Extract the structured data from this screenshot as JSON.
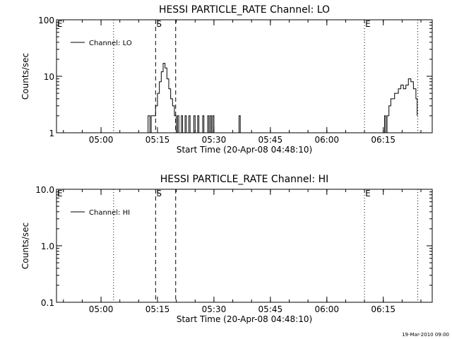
{
  "footer_stamp": "19-Mar-2010 09:00",
  "chart_data": [
    {
      "type": "line",
      "title": "HESSI PARTICLE_RATE Channel: LO",
      "xlabel": "Start Time (20-Apr-08 04:48:10)",
      "ylabel": "Counts/sec",
      "yscale": "log",
      "xlim": [
        "04:48:10",
        "06:28:00"
      ],
      "ylim": [
        1,
        100
      ],
      "x_ticks": [
        "05:00",
        "05:15",
        "05:30",
        "05:45",
        "06:00",
        "06:15"
      ],
      "y_ticks": [
        "1",
        "10",
        "100"
      ],
      "legend": {
        "entries": [
          "Channel: LO"
        ],
        "placement": "top-left"
      },
      "grid": false,
      "markers": [
        {
          "label": "E",
          "time": "04:48:10",
          "style": "none"
        },
        {
          "label": "",
          "time": "05:03:20",
          "style": "dotted"
        },
        {
          "label": "S",
          "time": "05:14:30",
          "style": "dashed"
        },
        {
          "label": "",
          "time": "05:19:50",
          "style": "dashed"
        },
        {
          "label": "E",
          "time": "06:10:00",
          "style": "dotted"
        },
        {
          "label": "",
          "time": "06:24:10",
          "style": "dotted"
        }
      ],
      "series": [
        {
          "name": "Channel: LO",
          "points": [
            [
              "05:12:00",
              1
            ],
            [
              "05:12:30",
              2
            ],
            [
              "05:13:00",
              1
            ],
            [
              "05:13:20",
              2
            ],
            [
              "05:14:00",
              2
            ],
            [
              "05:14:30",
              3
            ],
            [
              "05:15:00",
              5
            ],
            [
              "05:15:30",
              8
            ],
            [
              "05:16:00",
              12
            ],
            [
              "05:16:30",
              17
            ],
            [
              "05:17:00",
              14
            ],
            [
              "05:17:30",
              9
            ],
            [
              "05:18:00",
              6
            ],
            [
              "05:18:30",
              4
            ],
            [
              "05:19:00",
              3
            ],
            [
              "05:19:30",
              2
            ],
            [
              "05:20:00",
              1
            ],
            [
              "05:20:20",
              2
            ],
            [
              "05:20:40",
              1
            ],
            [
              "05:21:20",
              2
            ],
            [
              "05:21:40",
              1
            ],
            [
              "05:22:20",
              2
            ],
            [
              "05:22:40",
              1
            ],
            [
              "05:23:20",
              2
            ],
            [
              "05:23:40",
              1
            ],
            [
              "05:24:20",
              1
            ],
            [
              "05:24:40",
              2
            ],
            [
              "05:25:00",
              1
            ],
            [
              "05:25:40",
              2
            ],
            [
              "05:26:00",
              1
            ],
            [
              "05:26:40",
              1
            ],
            [
              "05:27:00",
              2
            ],
            [
              "05:27:20",
              1
            ],
            [
              "05:28:20",
              2
            ],
            [
              "05:28:40",
              1
            ],
            [
              "05:29:00",
              2
            ],
            [
              "05:29:20",
              1
            ],
            [
              "05:29:40",
              2
            ],
            [
              "05:30:00",
              1
            ],
            [
              "05:36:20",
              1
            ],
            [
              "05:36:40",
              2
            ],
            [
              "05:37:00",
              1
            ],
            [
              "06:15:00",
              1
            ],
            [
              "06:15:20",
              2
            ],
            [
              "06:15:40",
              1
            ],
            [
              "06:16:00",
              2
            ],
            [
              "06:16:30",
              3
            ],
            [
              "06:17:00",
              4
            ],
            [
              "06:18:00",
              5
            ],
            [
              "06:19:00",
              6
            ],
            [
              "06:19:40",
              7
            ],
            [
              "06:20:20",
              6
            ],
            [
              "06:21:00",
              7
            ],
            [
              "06:21:40",
              9
            ],
            [
              "06:22:20",
              8
            ],
            [
              "06:23:00",
              6
            ],
            [
              "06:23:40",
              4
            ],
            [
              "06:24:00",
              2
            ]
          ]
        }
      ]
    },
    {
      "type": "line",
      "title": "HESSI PARTICLE_RATE Channel: HI",
      "xlabel": "Start Time (20-Apr-08 04:48:10)",
      "ylabel": "Counts/sec",
      "yscale": "log",
      "xlim": [
        "04:48:10",
        "06:28:00"
      ],
      "ylim": [
        0.1,
        10
      ],
      "x_ticks": [
        "05:00",
        "05:15",
        "05:30",
        "05:45",
        "06:00",
        "06:15"
      ],
      "y_ticks": [
        "0.1",
        "1.0",
        "10.0"
      ],
      "legend": {
        "entries": [
          "Channel: HI"
        ],
        "placement": "top-left"
      },
      "grid": false,
      "markers": [
        {
          "label": "E",
          "time": "04:48:10",
          "style": "none"
        },
        {
          "label": "",
          "time": "05:03:20",
          "style": "dotted"
        },
        {
          "label": "S",
          "time": "05:14:30",
          "style": "dashed"
        },
        {
          "label": "",
          "time": "05:19:50",
          "style": "dashed"
        },
        {
          "label": "E",
          "time": "06:10:00",
          "style": "dotted"
        },
        {
          "label": "",
          "time": "06:24:10",
          "style": "dotted"
        }
      ],
      "series": [
        {
          "name": "Channel: HI",
          "points": []
        }
      ]
    }
  ]
}
